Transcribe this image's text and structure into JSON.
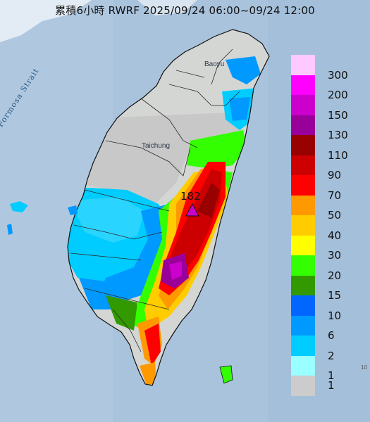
{
  "title": "累積6小時 RWRF 2025/09/24 06:00~09/24 12:00",
  "places": {
    "baoyu": "Baoyu",
    "taichung": "Taichung"
  },
  "strait_label": "Formosa Strait",
  "max_value_label": "182",
  "edge_number": "10",
  "legend": {
    "levels": [
      {
        "label": "300",
        "color": "#ffc8ff"
      },
      {
        "label": "200",
        "color": "#ff00ff"
      },
      {
        "label": "150",
        "color": "#cc00cc"
      },
      {
        "label": "130",
        "color": "#990099"
      },
      {
        "label": "110",
        "color": "#990000"
      },
      {
        "label": "90",
        "color": "#cc0000"
      },
      {
        "label": "70",
        "color": "#ff0000"
      },
      {
        "label": "50",
        "color": "#ff9900"
      },
      {
        "label": "40",
        "color": "#ffcc00"
      },
      {
        "label": "30",
        "color": "#ffff00"
      },
      {
        "label": "20",
        "color": "#33ff00"
      },
      {
        "label": "15",
        "color": "#339900"
      },
      {
        "label": "10",
        "color": "#0066ff"
      },
      {
        "label": "6",
        "color": "#0099ff"
      },
      {
        "label": "2",
        "color": "#00ccff"
      },
      {
        "label": "1",
        "color": "#99ffff"
      },
      {
        "label": "1",
        "color": "#cccccc",
        "note": "bottom"
      }
    ]
  },
  "colors": {
    "sea": "#a9c3dc",
    "land": "#d9d9d9",
    "no_rain": "#c8c8c8",
    "max_marker": "#cc00cc"
  }
}
